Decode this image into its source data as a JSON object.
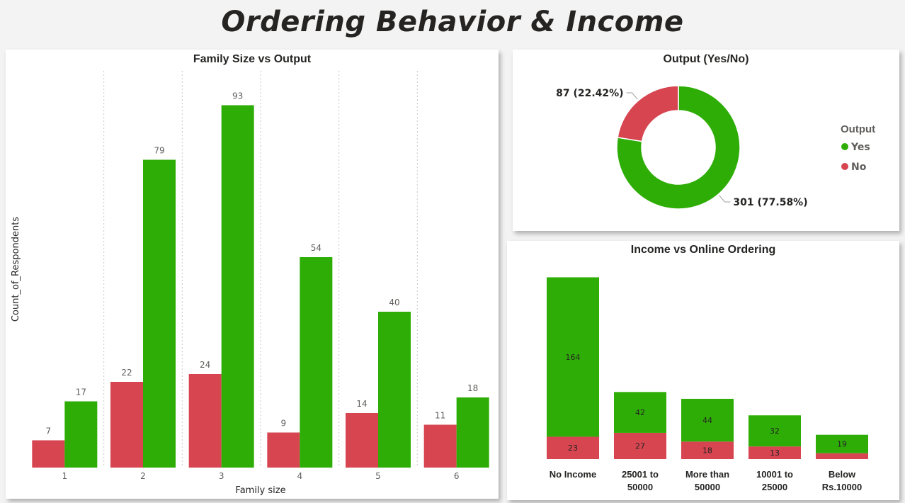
{
  "page": {
    "title": "Ordering Behavior & Income"
  },
  "colors": {
    "yes": "#2ead06",
    "no": "#d64550",
    "text": "#252423",
    "axis": "#605e5c"
  },
  "chart_data": [
    {
      "id": "family",
      "type": "bar",
      "title": "Family Size vs Output",
      "xlabel": "Family size",
      "ylabel": "Count_of_Respondents",
      "categories": [
        "1",
        "2",
        "3",
        "4",
        "5",
        "6"
      ],
      "series": [
        {
          "key": "no",
          "values": [
            7,
            22,
            24,
            9,
            14,
            11
          ]
        },
        {
          "key": "yes",
          "values": [
            17,
            79,
            93,
            54,
            40,
            18
          ]
        }
      ],
      "ylim": [
        0,
        100
      ],
      "grid": "vertical-dotted"
    },
    {
      "id": "output",
      "type": "pie",
      "title": "Output (Yes/No)",
      "legend_title": "Output",
      "legend_position": "right",
      "slices": [
        {
          "key": "yes",
          "label": "Yes",
          "value": 301,
          "display": "301 (77.58%)"
        },
        {
          "key": "no",
          "label": "No",
          "value": 87,
          "display": "87 (22.42%)"
        }
      ]
    },
    {
      "id": "income",
      "type": "bar",
      "stacked": true,
      "title": "Income vs Online Ordering",
      "categories": [
        [
          "No Income"
        ],
        [
          "25001 to",
          "50000"
        ],
        [
          "More than",
          "50000"
        ],
        [
          "10001 to",
          "25000"
        ],
        [
          "Below",
          "Rs.10000"
        ]
      ],
      "series": [
        {
          "key": "no",
          "values": [
            23,
            27,
            18,
            13,
            6
          ]
        },
        {
          "key": "yes",
          "values": [
            164,
            42,
            44,
            32,
            19
          ]
        }
      ],
      "ylim": [
        0,
        200
      ]
    }
  ]
}
